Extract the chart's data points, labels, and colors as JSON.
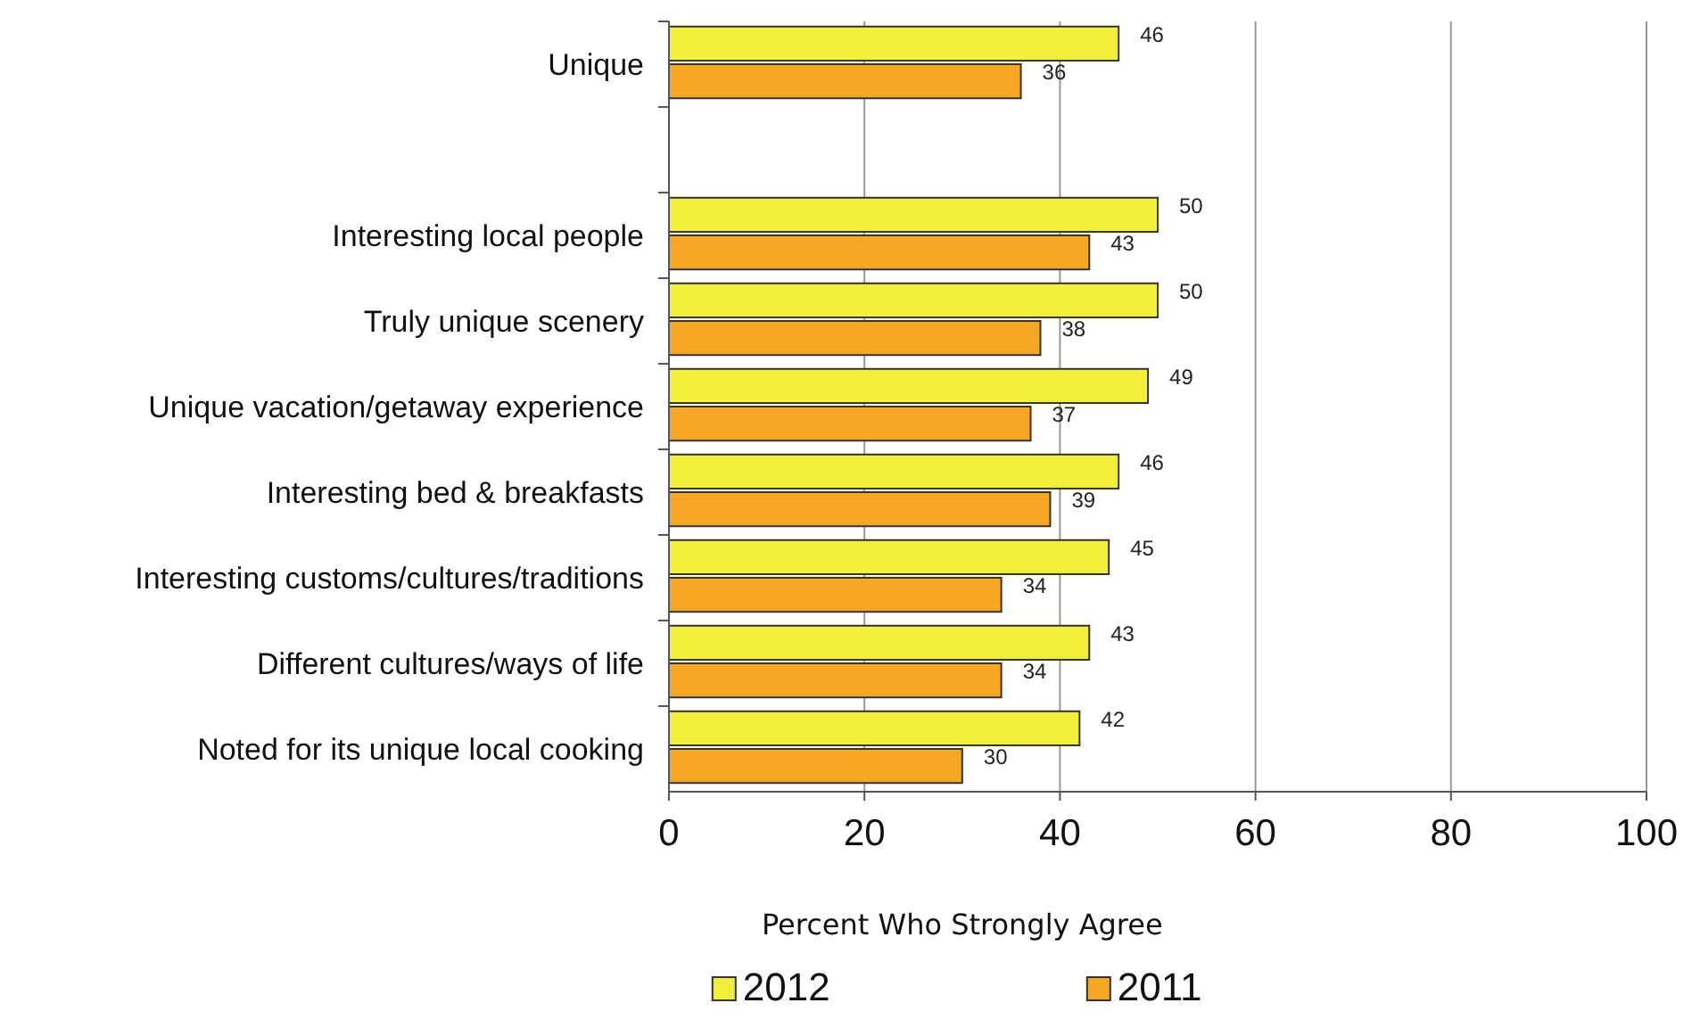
{
  "chart_data": {
    "type": "bar",
    "orientation": "horizontal",
    "xlabel": "Percent Who Strongly Agree",
    "categories": [
      "Unique",
      null,
      "Interesting local people",
      "Truly unique scenery",
      "Unique vacation/getaway experience",
      "Interesting bed & breakfasts",
      "Interesting customs/cultures/traditions",
      "Different cultures/ways of life",
      "Noted for its unique local cooking"
    ],
    "series": [
      {
        "name": "2012",
        "color": "#f2ef3a",
        "values": [
          46,
          null,
          50,
          50,
          49,
          46,
          45,
          43,
          42
        ]
      },
      {
        "name": "2011",
        "color": "#f5a623",
        "values": [
          36,
          null,
          43,
          38,
          37,
          39,
          34,
          34,
          30
        ]
      }
    ],
    "xlim": [
      0,
      100
    ],
    "xticks": [
      0,
      20,
      40,
      60,
      80,
      100
    ],
    "grid": "x",
    "legend": "bottom",
    "data_labels": true
  }
}
